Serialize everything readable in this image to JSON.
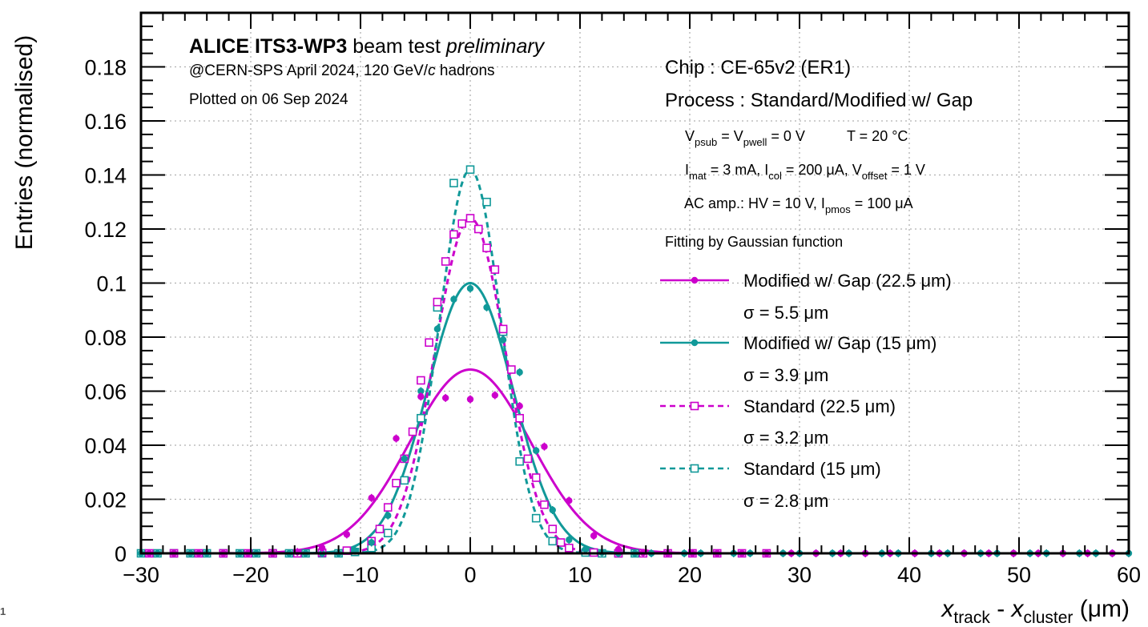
{
  "page_number": "1",
  "colors": {
    "magenta": "#cc00cc",
    "teal": "#119999",
    "grid": "#b0b0b0"
  },
  "header": {
    "experiment_bold": "ALICE ITS3-WP3",
    "experiment_rest": " beam test ",
    "experiment_italic": "preliminary",
    "beam_pre": "@CERN-SPS April 2024, 120 GeV/",
    "beam_c": "c",
    "beam_post": " hadrons",
    "plotted": "Plotted on 06 Sep 2024"
  },
  "info": {
    "chip": "Chip : CE-65v2 (ER1)",
    "process": "Process : Standard/Modified w/ Gap",
    "line_vsub": {
      "v": "V",
      "psub": "psub",
      "eq": " = V",
      "pwell": "pwell",
      "rest": " = 0 V",
      "temp": "T = 20 °C"
    },
    "line_imat": {
      "i1": "I",
      "mat": "mat",
      "t1": " = 3 mA, I",
      "col": "col",
      "t2": " = 200 μA, V",
      "offset": "offset",
      "t3": " = 1 V"
    },
    "line_ac": {
      "t1": "AC amp.: HV = 10 V, I",
      "pmos": "pmos",
      "t2": " = 100 μA"
    },
    "fitting": "Fitting by Gaussian function"
  },
  "chart_data": {
    "type": "scatter",
    "xlabel_main": "x",
    "xlabel_sub1": "track",
    "xlabel_mid": " - ",
    "xlabel_sub2": "cluster",
    "xlabel_unit": " (μm)",
    "ylabel": "Entries (normalised)",
    "xlim": [
      -30,
      60
    ],
    "ylim": [
      0,
      0.2
    ],
    "x_ticks": [
      "−30",
      "−20",
      "−10",
      "0",
      "10",
      "20",
      "30",
      "40",
      "50",
      "60"
    ],
    "x_tick_values": [
      -30,
      -20,
      -10,
      0,
      10,
      20,
      30,
      40,
      50,
      60
    ],
    "y_ticks": [
      "0",
      "0.02",
      "0.04",
      "0.06",
      "0.08",
      "0.1",
      "0.12",
      "0.14",
      "0.16",
      "0.18"
    ],
    "y_tick_values": [
      0,
      0.02,
      0.04,
      0.06,
      0.08,
      0.1,
      0.12,
      0.14,
      0.16,
      0.18
    ],
    "grid": true,
    "legend_position": "right",
    "series": [
      {
        "name": "Modified w/ Gap (22.5 μm)",
        "sigma_label": "σ = 5.5 μm",
        "color": "#cc00cc",
        "marker": "filled-circle",
        "line": "solid",
        "fit": {
          "amplitude": 0.068,
          "mean": 0,
          "sigma": 5.5
        },
        "x": [
          -29.25,
          -27,
          -24.75,
          -22.5,
          -20.25,
          -18,
          -15.75,
          -13.5,
          -11.25,
          -9,
          -6.75,
          -4.5,
          -2.25,
          0,
          2.25,
          4.5,
          6.75,
          9,
          11.25,
          13.5,
          15.75,
          18,
          20.25,
          22.5,
          24.75,
          27,
          29.25,
          31.5,
          33.75,
          36,
          38.25,
          40.5,
          42.75,
          45,
          47.25,
          49.5,
          51.75,
          54,
          56.25,
          58.5
        ],
        "y": [
          0,
          0,
          0,
          0,
          0,
          0,
          0.0005,
          0.002,
          0.007,
          0.0205,
          0.0425,
          0.058,
          0.0575,
          0.057,
          0.0585,
          0.0545,
          0.0395,
          0.0195,
          0.0065,
          0.0015,
          0.0002,
          0,
          0,
          0,
          0,
          0,
          0,
          0,
          0,
          0,
          0,
          0,
          0,
          0,
          0,
          0,
          0,
          0,
          0,
          0
        ]
      },
      {
        "name": "Modified w/ Gap (15 μm)",
        "sigma_label": "σ = 3.9 μm",
        "color": "#119999",
        "marker": "filled-circle",
        "line": "solid",
        "fit": {
          "amplitude": 0.1,
          "mean": 0,
          "sigma": 3.9
        },
        "x": [
          -30,
          -28.5,
          -27,
          -25.5,
          -24,
          -22.5,
          -21,
          -19.5,
          -18,
          -16.5,
          -15,
          -13.5,
          -12,
          -10.5,
          -9,
          -7.5,
          -6,
          -4.5,
          -3,
          -1.5,
          0,
          1.5,
          3,
          4.5,
          6,
          7.5,
          9,
          10.5,
          12,
          13.5,
          15,
          16.5,
          18,
          19.5,
          21,
          22.5,
          24,
          25.5,
          27,
          28.5,
          30,
          31.5,
          33,
          34.5,
          36,
          37.5,
          39,
          40.5,
          42,
          43.5,
          45,
          46.5,
          48,
          49.5,
          51,
          52.5,
          54,
          55.5,
          57,
          58.5,
          60
        ],
        "y": [
          0,
          0,
          0,
          0,
          0,
          0,
          0,
          0,
          0,
          0,
          0,
          0,
          0,
          0.001,
          0.004,
          0.014,
          0.035,
          0.06,
          0.083,
          0.094,
          0.098,
          0.091,
          0.079,
          0.067,
          0.038,
          0.016,
          0.005,
          0.0015,
          0.0003,
          0,
          0,
          0,
          0,
          0,
          0,
          0,
          0,
          0,
          0,
          0,
          0,
          0,
          0,
          0,
          0,
          0,
          0,
          0,
          0,
          0,
          0,
          0,
          0,
          0,
          0,
          0,
          0,
          0,
          0,
          0,
          0
        ]
      },
      {
        "name": "Standard (22.5 μm)",
        "sigma_label": "σ = 3.2 μm",
        "color": "#cc00cc",
        "marker": "open-square",
        "line": "dashed",
        "fit": {
          "amplitude": 0.124,
          "mean": 0,
          "sigma": 3.2
        },
        "x": [
          -29.25,
          -27,
          -24.75,
          -22.5,
          -20.25,
          -18,
          -15.75,
          -13.5,
          -11.25,
          -9,
          -8.25,
          -7.5,
          -6.75,
          -6,
          -5.25,
          -4.5,
          -3.75,
          -3,
          -2.25,
          -1.5,
          -0.75,
          0,
          0.75,
          1.5,
          2.25,
          3,
          3.75,
          4.5,
          5.25,
          6,
          6.75,
          7.5,
          8.25,
          9,
          11.25,
          13.5,
          15.75,
          18,
          20.25,
          22.5,
          24.75,
          27
        ],
        "y": [
          0,
          0,
          0,
          0,
          0,
          0,
          0,
          0.0002,
          0.001,
          0.0045,
          0.009,
          0.017,
          0.026,
          0.035,
          0.045,
          0.064,
          0.078,
          0.093,
          0.108,
          0.118,
          0.122,
          0.124,
          0.12,
          0.113,
          0.105,
          0.083,
          0.068,
          0.05,
          0.035,
          0.028,
          0.018,
          0.009,
          0.004,
          0.002,
          0.0003,
          0,
          0,
          0,
          0,
          0,
          0,
          0
        ]
      },
      {
        "name": "Standard (15 μm)",
        "sigma_label": "σ = 2.8 μm",
        "color": "#119999",
        "marker": "open-square",
        "line": "dashed",
        "fit": {
          "amplitude": 0.142,
          "mean": 0,
          "sigma": 2.8
        },
        "x": [
          -30,
          -28.5,
          -27,
          -25.5,
          -24,
          -22.5,
          -21,
          -19.5,
          -18,
          -16.5,
          -15,
          -13.5,
          -12,
          -10.5,
          -9,
          -7.5,
          -6,
          -4.5,
          -3,
          -1.5,
          0,
          1.5,
          3,
          4.5,
          6,
          7.5,
          9,
          10.5,
          12,
          13.5,
          15
        ],
        "y": [
          0,
          0,
          0,
          0,
          0,
          0,
          0,
          0,
          0,
          0,
          0,
          0,
          0,
          0.0005,
          0.002,
          0.0075,
          0.027,
          0.05,
          0.091,
          0.137,
          0.142,
          0.13,
          0.082,
          0.034,
          0.013,
          0.0045,
          0.0015,
          0.0003,
          0,
          0,
          0
        ]
      }
    ]
  }
}
